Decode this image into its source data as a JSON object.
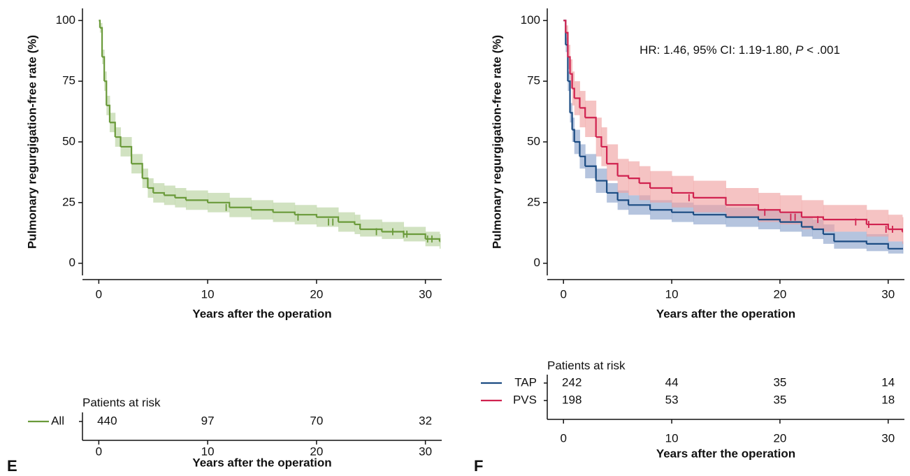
{
  "chart_data": [
    {
      "type": "km",
      "panel_label": "E",
      "x_label": "Years after the operation",
      "y_label": "Pulmonary regurgigation-free rate (%)",
      "xlim": [
        -1.5,
        31.5
      ],
      "ylim": [
        -5,
        105
      ],
      "xticks": [
        0,
        10,
        20,
        30
      ],
      "yticks": [
        0,
        25,
        50,
        75,
        100
      ],
      "series": [
        {
          "name": "All",
          "color": "#6a9a3a",
          "band_color": "#b9d3a0",
          "x": [
            0,
            0.1,
            0.3,
            0.5,
            0.7,
            1,
            1.5,
            2,
            3,
            4,
            4.5,
            5,
            6,
            7,
            8,
            10,
            12,
            14,
            16,
            18,
            20,
            22,
            23.5,
            24,
            26,
            28,
            30,
            31.3
          ],
          "values": [
            100,
            97,
            85,
            75,
            65,
            58,
            52,
            48,
            41,
            35,
            31,
            29,
            28,
            27,
            26,
            25,
            23,
            22,
            21,
            20,
            19,
            17,
            16,
            14,
            13,
            12,
            10,
            9
          ],
          "lower": [
            100,
            95,
            82,
            71,
            61,
            54,
            48,
            44,
            37,
            31,
            27,
            25,
            24,
            23,
            22,
            21,
            19,
            18,
            17,
            16,
            15,
            13,
            12,
            11,
            10,
            9,
            7,
            6
          ],
          "upper": [
            100,
            99,
            88,
            79,
            69,
            62,
            56,
            52,
            45,
            39,
            35,
            33,
            32,
            31,
            30,
            29,
            27,
            26,
            25,
            24,
            23,
            21,
            20,
            18,
            17,
            15,
            13,
            12
          ],
          "censored": {
            "x": [
              11.7,
              18.3,
              21.1,
              21.5,
              25.5,
              27,
              28,
              28.3,
              30.2,
              30.6
            ],
            "values": [
              23,
              19,
              17,
              17,
              13,
              13,
              12,
              12,
              10,
              10
            ]
          }
        }
      ],
      "risk_table": {
        "title": "Patients at risk",
        "x_label": "Years after the operation",
        "xticks": [
          0,
          10,
          20,
          30
        ],
        "rows": [
          {
            "name": "All",
            "color": "#6a9a3a",
            "values": [
              440,
              97,
              70,
              32
            ]
          }
        ]
      }
    },
    {
      "type": "km",
      "panel_label": "F",
      "x_label": "Years after the operation",
      "y_label": "Pulmonary regurgigation-free rate (%)",
      "annotation": [
        "HR: 1.46, 95% CI: 1.19-1.80, ",
        "P",
        " < .001"
      ],
      "xlim": [
        -1.5,
        31.5
      ],
      "ylim": [
        -5,
        105
      ],
      "xticks": [
        0,
        10,
        20,
        30
      ],
      "yticks": [
        0,
        25,
        50,
        75,
        100
      ],
      "series": [
        {
          "name": "TAP",
          "color": "#1b4b82",
          "band_color": "#8ea4cc",
          "x": [
            0,
            0.2,
            0.4,
            0.6,
            0.8,
            1,
            1.5,
            2,
            3,
            4,
            5,
            6,
            8,
            10,
            12,
            15,
            18,
            20,
            22,
            23,
            24,
            25,
            28,
            30,
            31.3
          ],
          "values": [
            100,
            90,
            75,
            62,
            55,
            50,
            44,
            40,
            34,
            29,
            26,
            24,
            22,
            21,
            20,
            19,
            18,
            17,
            15,
            14,
            12,
            9,
            8,
            6,
            6
          ],
          "lower": [
            100,
            87,
            71,
            58,
            50,
            45,
            39,
            35,
            29,
            25,
            22,
            20,
            18,
            17,
            16,
            15,
            14,
            13,
            11,
            10,
            8,
            6,
            5,
            4,
            4
          ],
          "upper": [
            100,
            93,
            79,
            66,
            60,
            55,
            49,
            45,
            39,
            33,
            30,
            28,
            26,
            25,
            24,
            23,
            22,
            21,
            19,
            18,
            16,
            13,
            12,
            9,
            9
          ]
        },
        {
          "name": "PVS",
          "color": "#d0224f",
          "band_color": "#efa3a3",
          "x": [
            0,
            0.2,
            0.4,
            0.6,
            0.8,
            1,
            1.5,
            2,
            3,
            3.5,
            4,
            5,
            6,
            7,
            8,
            10,
            12,
            15,
            18,
            20,
            22,
            24,
            28,
            30,
            31.3
          ],
          "values": [
            100,
            95,
            85,
            78,
            72,
            68,
            64,
            60,
            52,
            48,
            41,
            36,
            35,
            33,
            31,
            29,
            27,
            24,
            22,
            21,
            19,
            18,
            16,
            14,
            13
          ],
          "lower": [
            100,
            92,
            80,
            72,
            65,
            61,
            56,
            52,
            44,
            40,
            34,
            29,
            28,
            26,
            25,
            23,
            21,
            19,
            17,
            16,
            14,
            13,
            11,
            9,
            8
          ],
          "upper": [
            100,
            98,
            90,
            84,
            79,
            75,
            71,
            67,
            60,
            56,
            49,
            43,
            42,
            40,
            38,
            36,
            34,
            31,
            29,
            28,
            26,
            24,
            22,
            20,
            19
          ],
          "censored": {
            "x": [
              11.6,
              18.6,
              21,
              21.4,
              23.5,
              27,
              28.2,
              29.8,
              30.4
            ],
            "values": [
              27,
              21,
              19,
              19,
              18,
              17,
              16,
              14,
              14
            ]
          }
        }
      ],
      "risk_table": {
        "title": "Patients at risk",
        "x_label": "Years after the operation",
        "xticks": [
          0,
          10,
          20,
          30
        ],
        "rows": [
          {
            "name": "TAP",
            "color": "#1b4b82",
            "values": [
              242,
              44,
              35,
              14
            ]
          },
          {
            "name": "PVS",
            "color": "#d0224f",
            "values": [
              198,
              53,
              35,
              18
            ]
          }
        ]
      }
    }
  ]
}
